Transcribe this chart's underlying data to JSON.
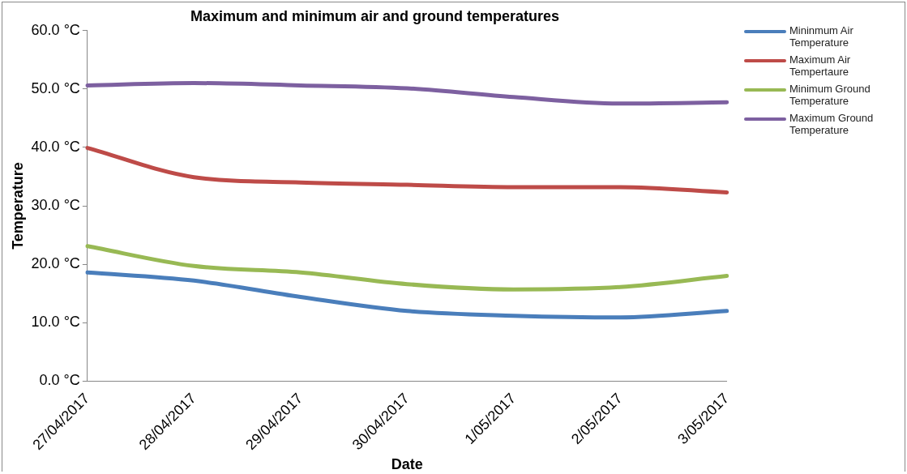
{
  "chart_data": {
    "type": "line",
    "title": "Maximum and minimum air and ground temperatures",
    "xlabel": "Date",
    "ylabel": "Temperature",
    "categories": [
      "27/04/2017",
      "28/04/2017",
      "29/04/2017",
      "30/04/2017",
      "1/05/2017",
      "2/05/2017",
      "3/05/2017"
    ],
    "series": [
      {
        "name": "Mininmum Air Temperature",
        "color": "#4a7ebb",
        "values": [
          18.6,
          17.2,
          14.4,
          12.0,
          11.2,
          10.9,
          12.0
        ]
      },
      {
        "name": "Maximum Air Tempertaure",
        "color": "#be4b48",
        "values": [
          39.9,
          34.9,
          34.0,
          33.6,
          33.2,
          33.2,
          32.3
        ]
      },
      {
        "name": "Minimum Ground Temperature",
        "color": "#98b954",
        "values": [
          23.1,
          19.7,
          18.6,
          16.6,
          15.7,
          16.1,
          18.0
        ]
      },
      {
        "name": "Maximum Ground Temperature",
        "color": "#7d60a0",
        "values": [
          50.6,
          51.0,
          50.6,
          50.1,
          48.6,
          47.5,
          47.7
        ]
      }
    ],
    "ylim": [
      0,
      60
    ],
    "yticks": [
      {
        "value": 0,
        "label": "0.0 °C"
      },
      {
        "value": 10,
        "label": "10.0 °C"
      },
      {
        "value": 20,
        "label": "20.0 °C"
      },
      {
        "value": 30,
        "label": "30.0 °C"
      },
      {
        "value": 40,
        "label": "40.0 °C"
      },
      {
        "value": 50,
        "label": "50.0 °C"
      },
      {
        "value": 60,
        "label": "60.0 °C"
      }
    ],
    "grid": false,
    "legend": "right",
    "marker": "none",
    "line_style": "solid"
  }
}
